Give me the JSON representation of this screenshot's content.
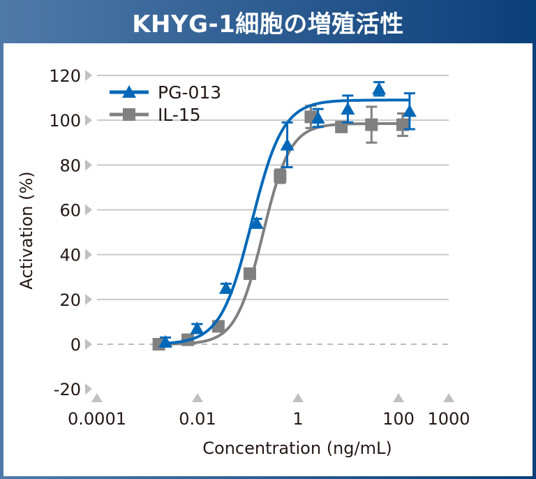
{
  "header": {
    "title": "KHYG-1細胞の増殖活性"
  },
  "chart_data": {
    "type": "scatter",
    "title": "KHYG-1細胞の増殖活性",
    "xlabel": "Concentration (ng/mL)",
    "ylabel": "Activation (%)",
    "xscale": "log",
    "xlim": [
      0.0001,
      1000
    ],
    "ylim": [
      -20,
      120
    ],
    "xticks": [
      0.0001,
      0.01,
      1,
      100,
      1000
    ],
    "xtick_labels": [
      "0.0001",
      "0.01",
      "1",
      "100",
      "1000"
    ],
    "yticks": [
      -20,
      0,
      20,
      40,
      60,
      80,
      100,
      120
    ],
    "ytick_labels": [
      "-20",
      "0",
      "20",
      "40",
      "60",
      "80",
      "100",
      "120"
    ],
    "grid": "horizontal",
    "zero_line": "dashed",
    "legend": "top-left",
    "fit": "sigmoid",
    "series": [
      {
        "name": "PG-013",
        "color": "#0068b7",
        "marker": "triangle",
        "x": [
          0.0023,
          0.0098,
          0.037,
          0.15,
          0.61,
          2.5,
          9.8,
          41,
          166
        ],
        "y": [
          1,
          7,
          25,
          54,
          89,
          101,
          105,
          114,
          104
        ],
        "err": [
          2,
          2,
          2,
          2,
          10,
          4,
          6,
          3,
          8
        ],
        "fit_params": {
          "bottom": 0,
          "top": 109,
          "ec50": 0.12,
          "hill": 1.4
        }
      },
      {
        "name": "IL-15",
        "color": "#808080",
        "marker": "square",
        "x": [
          0.0017,
          0.0064,
          0.026,
          0.11,
          0.44,
          1.8,
          7.3,
          29,
          121
        ],
        "y": [
          0,
          2,
          8,
          31.5,
          75,
          101.5,
          97,
          98,
          98
        ],
        "err": [
          1,
          1,
          1,
          1,
          3,
          5,
          2,
          8,
          5
        ],
        "fit_params": {
          "bottom": 0,
          "top": 98.5,
          "ec50": 0.2,
          "hill": 1.6
        }
      }
    ]
  }
}
